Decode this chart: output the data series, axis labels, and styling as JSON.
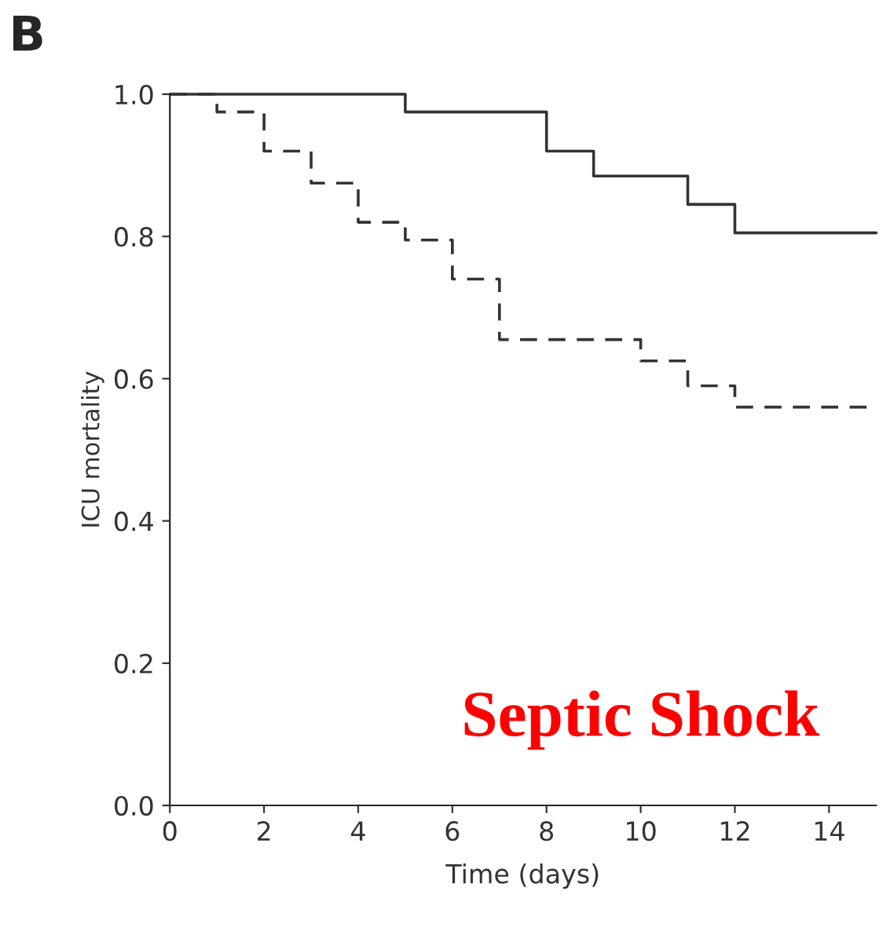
{
  "chart_data": {
    "type": "step",
    "title": "B",
    "xlabel": "Time (days)",
    "ylabel": "ICU mortality",
    "series": [
      {
        "color": "#333333",
        "line_style": "solid",
        "x": [
          0,
          5,
          8,
          9,
          11,
          12,
          15
        ],
        "values": [
          1.0,
          0.975,
          0.92,
          0.885,
          0.845,
          0.805,
          0.805
        ]
      },
      {
        "color": "#333333",
        "line_style": "dashed",
        "x": [
          0,
          1,
          2,
          3,
          4,
          5,
          6,
          7,
          10,
          11,
          12,
          15
        ],
        "values": [
          1.0,
          0.975,
          0.92,
          0.875,
          0.82,
          0.795,
          0.74,
          0.655,
          0.625,
          0.59,
          0.56,
          0.56
        ]
      }
    ],
    "xlim": [
      0,
      15
    ],
    "ylim": [
      0,
      1.0
    ],
    "xticks": [
      0,
      2,
      4,
      6,
      8,
      10,
      12,
      14
    ],
    "yticks": [
      {
        "value": 0,
        "label": "0.0"
      },
      {
        "value": 0.2,
        "label": "0.2"
      },
      {
        "value": 0.4,
        "label": "0.4"
      },
      {
        "value": 0.6,
        "label": "0.6"
      },
      {
        "value": 0.8,
        "label": "0.8"
      },
      {
        "value": 1.0,
        "label": "1.0"
      }
    ],
    "annotations": [
      "Septic Shock"
    ],
    "grid": false,
    "legend": false
  }
}
